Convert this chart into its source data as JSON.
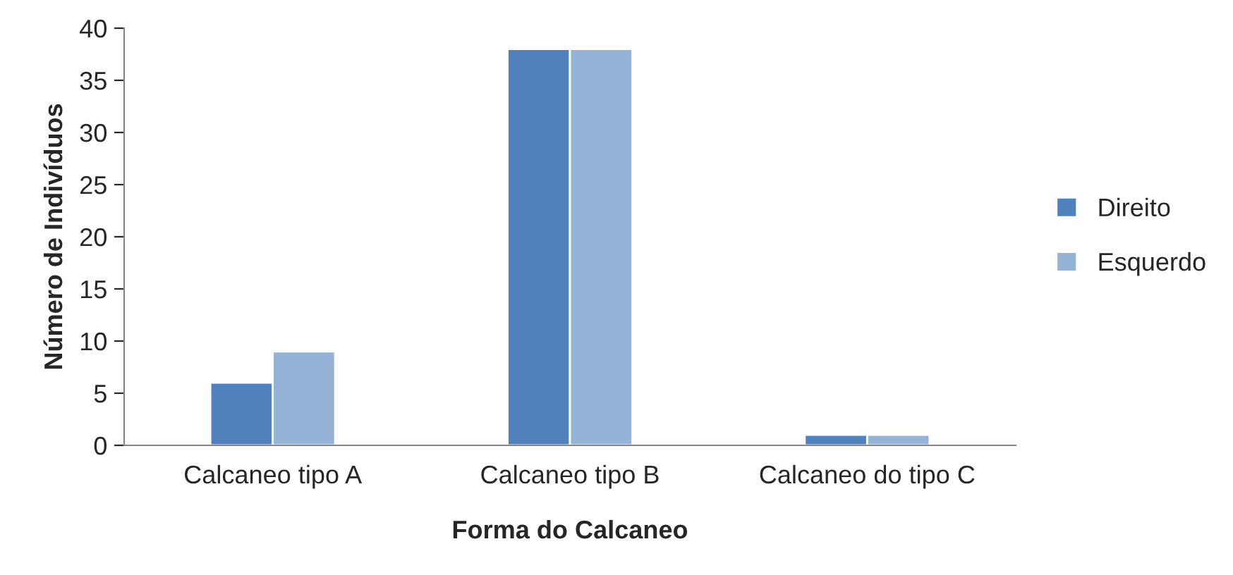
{
  "chart_data": {
    "type": "bar",
    "xlabel": "Forma do Calcaneo",
    "ylabel": "Número de Indivíduos",
    "categories": [
      "Calcaneo tipo A",
      "Calcaneo tipo B",
      "Calcaneo do tipo C"
    ],
    "series": [
      {
        "name": "Direito",
        "color": "#4f81bd",
        "values": [
          6,
          38,
          1
        ]
      },
      {
        "name": "Esquerdo",
        "color": "#95b3d7",
        "values": [
          9,
          38,
          1
        ]
      }
    ],
    "ylim": [
      0,
      40
    ],
    "yticks": [
      0,
      5,
      10,
      15,
      20,
      25,
      30,
      35,
      40
    ],
    "grid": false,
    "legend": "right"
  }
}
